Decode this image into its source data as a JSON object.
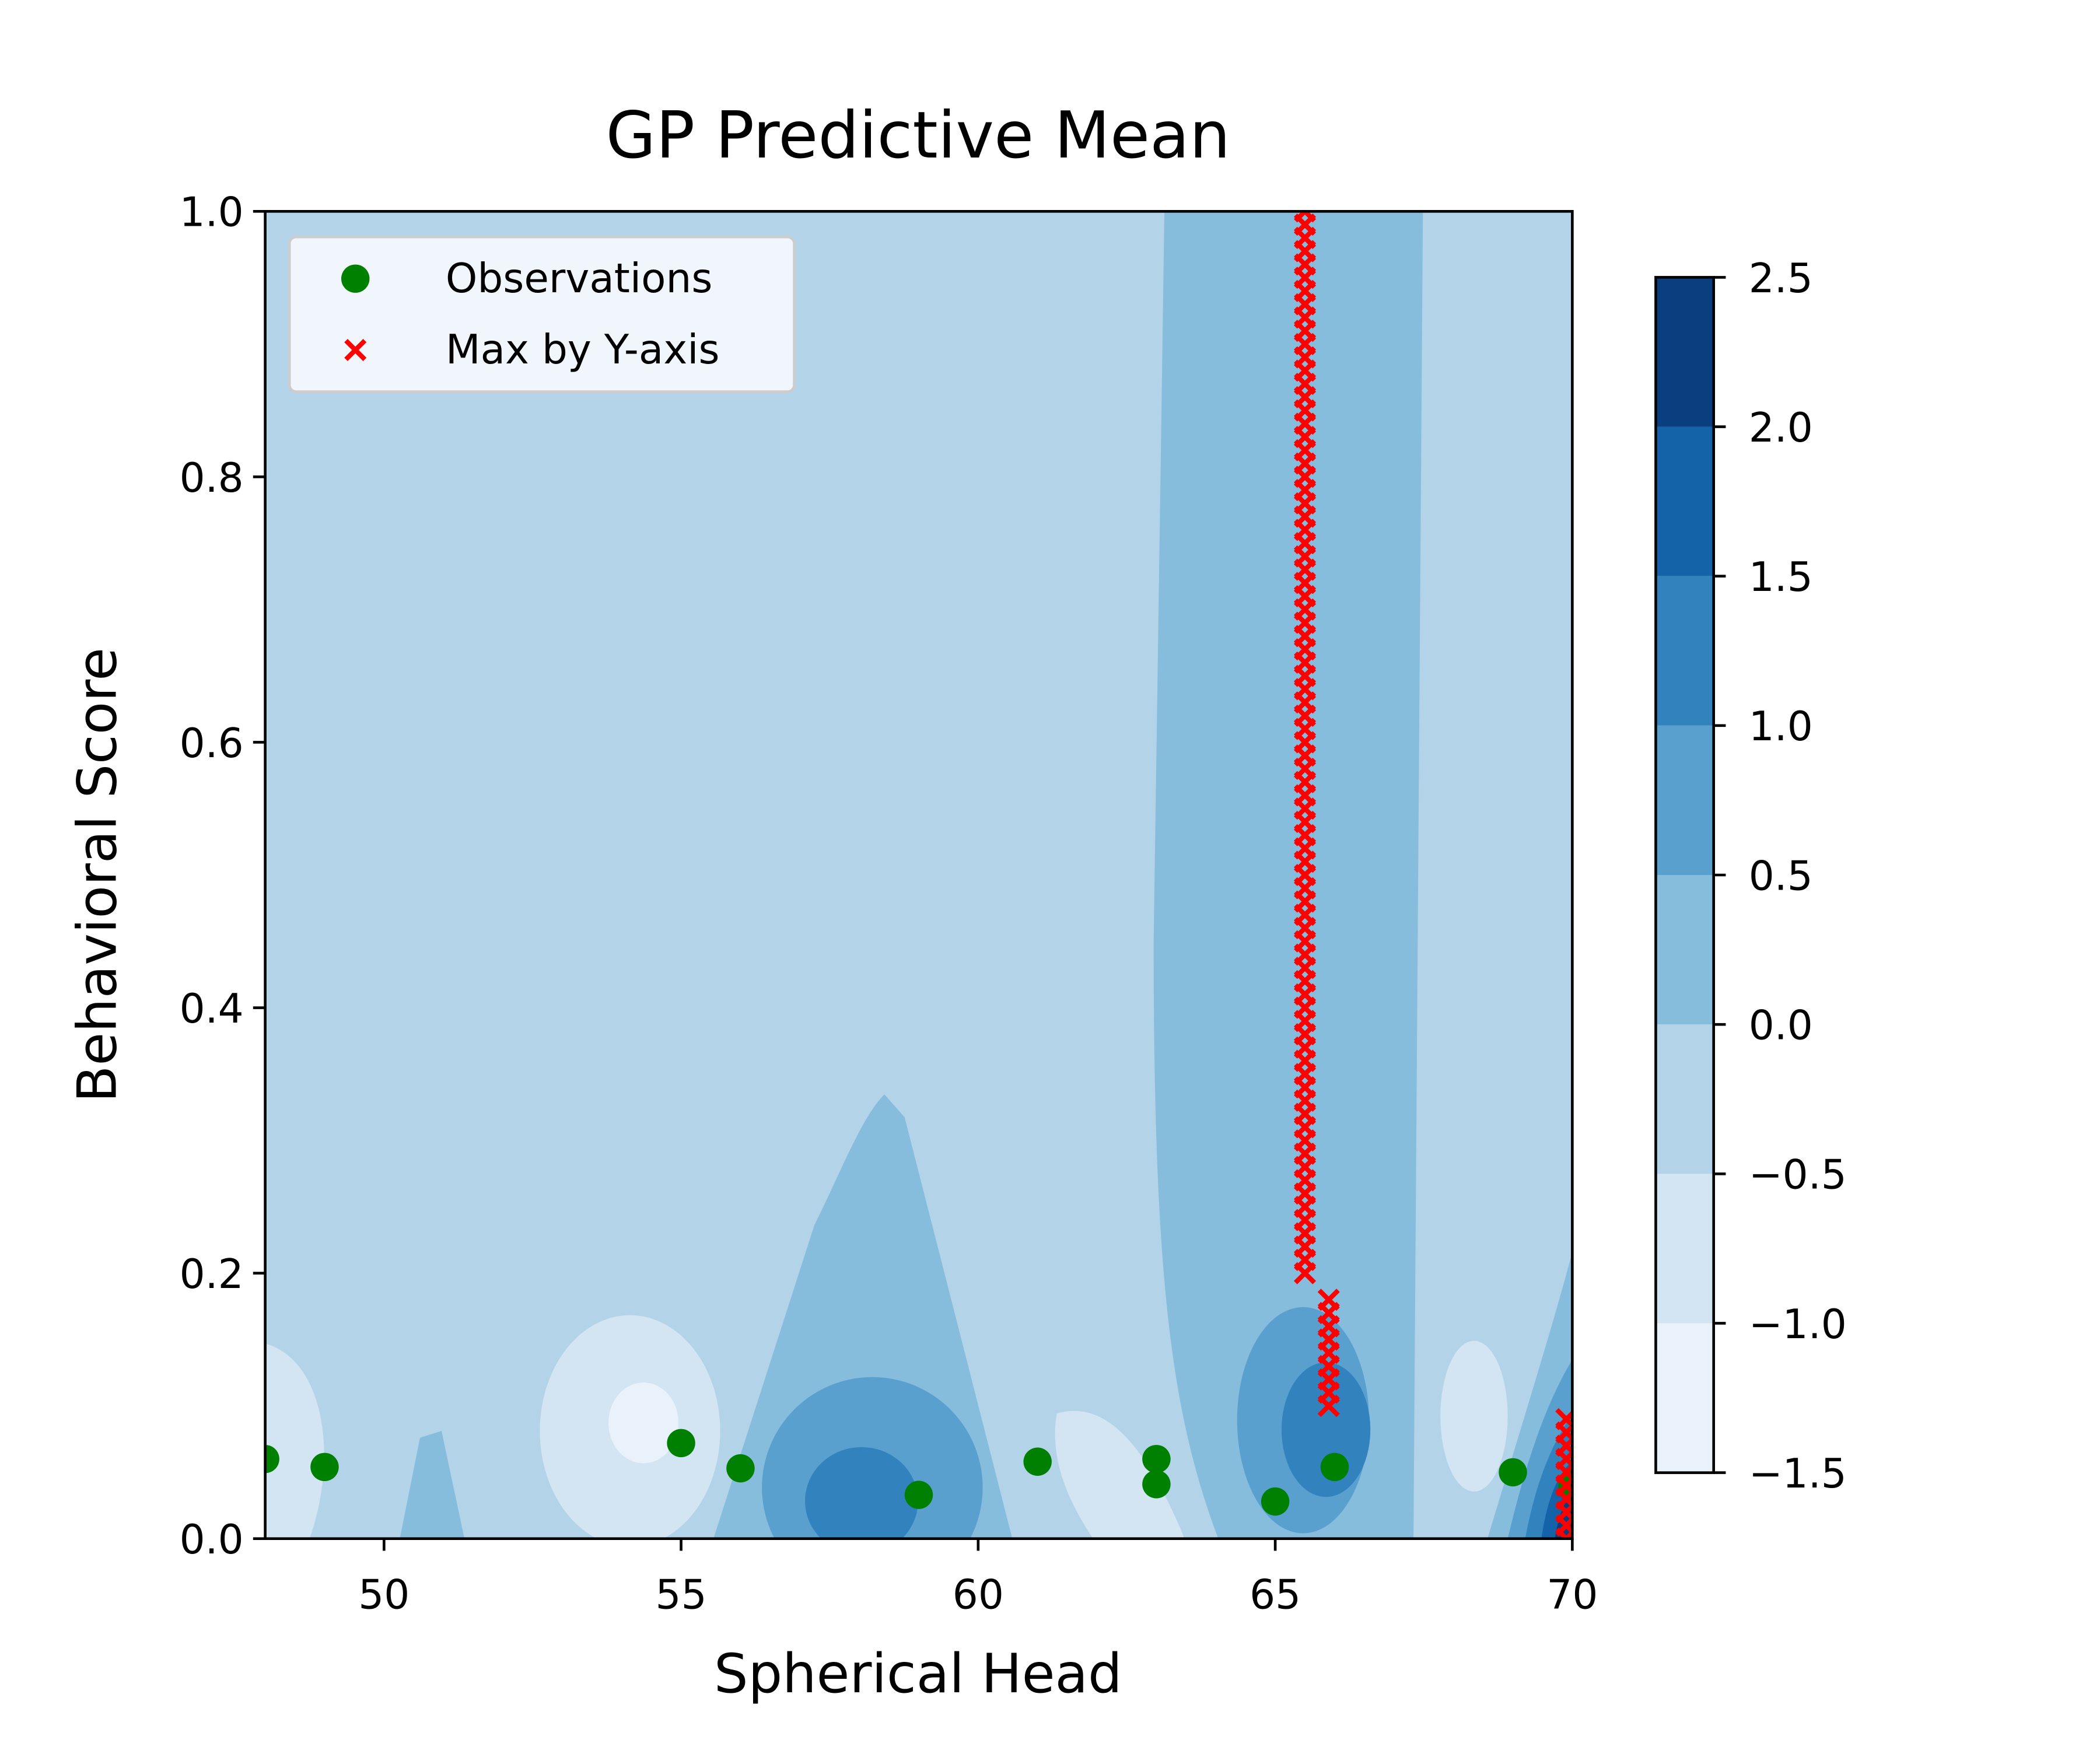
{
  "chart_data": {
    "type": "contour",
    "title": "GP Predictive Mean",
    "xlabel": "Spherical Head",
    "ylabel": "Behavioral Score",
    "xlim": [
      48,
      70
    ],
    "ylim": [
      0,
      1
    ],
    "xticks": [
      50,
      55,
      60,
      65,
      70
    ],
    "yticks": [
      {
        "value": 0,
        "label": "0.0"
      },
      0.2,
      0.4,
      0.6,
      0.8,
      {
        "value": 1,
        "label": "1.0"
      }
    ],
    "legend": "upper left",
    "colorbar": {
      "ticks": [
        {
          "value": -1.5,
          "label": "−1.5"
        },
        {
          "value": -1,
          "label": "−1.0"
        },
        {
          "value": -0.5,
          "label": "−0.5"
        },
        {
          "value": 0,
          "label": "0.0"
        },
        0.5,
        {
          "value": 1,
          "label": "1.0"
        },
        1.5,
        {
          "value": 2,
          "label": "2.0"
        },
        2.5
      ],
      "colors": [
        "#e9f2fb",
        "#d3e4f3",
        "#b3d3e8",
        "#86bcdc",
        "#5aa0cf",
        "#3282be",
        "#1462a8",
        "#0a3f7f"
      ]
    },
    "series": [
      {
        "name": "Observations",
        "marker": "circle",
        "color": "#008000",
        "x": [
          48,
          49,
          55,
          56,
          59,
          61,
          63,
          63,
          65,
          66,
          69,
          70
        ],
        "y": [
          0.06,
          0.054,
          0.072,
          0.053,
          0.033,
          0.058,
          0.06,
          0.041,
          0.028,
          0.054,
          0.05,
          0.04
        ]
      },
      {
        "name": "Max by Y-axis",
        "marker": "x",
        "color": "#ff0000",
        "x": [
          65.5,
          65.5,
          65.5,
          65.5,
          65.5,
          65.5,
          65.5,
          65.5,
          65.5,
          65.5,
          65.5,
          65.5,
          65.5,
          65.5,
          65.5,
          65.5,
          65.5,
          65.5,
          65.5,
          65.5,
          65.5,
          65.5,
          65.5,
          65.5,
          65.5,
          65.5,
          65.5,
          65.5,
          65.5,
          65.5,
          65.5,
          65.5,
          65.5,
          65.5,
          65.5,
          65.5,
          65.5,
          65.5,
          65.5,
          65.5,
          65.5,
          65.5,
          65.5,
          65.5,
          65.5,
          65.5,
          65.5,
          65.5,
          65.5,
          65.5,
          65.5,
          65.5,
          65.5,
          65.5,
          65.5,
          65.5,
          65.5,
          65.5,
          65.5,
          65.5,
          65.5,
          65.5,
          65.5,
          65.5,
          65.5,
          65.5,
          65.5,
          65.5,
          65.5,
          65.5,
          65.5,
          65.5,
          65.5,
          65.5,
          65.5,
          65.5,
          65.5,
          65.5,
          65.5,
          65.5,
          65.5,
          65.9,
          65.9,
          65.9,
          65.9,
          65.9,
          65.9,
          65.9,
          65.9,
          65.9,
          69.9,
          69.9,
          69.9,
          69.9,
          69.9,
          69.9,
          69.9,
          69.9,
          69.9,
          69.9
        ],
        "y": [
          0.2,
          0.21,
          0.22,
          0.23,
          0.24,
          0.25,
          0.26,
          0.27,
          0.28,
          0.29,
          0.3,
          0.31,
          0.32,
          0.33,
          0.34,
          0.35,
          0.36,
          0.37,
          0.38,
          0.39,
          0.4,
          0.41,
          0.42,
          0.43,
          0.44,
          0.45,
          0.46,
          0.47,
          0.48,
          0.49,
          0.5,
          0.51,
          0.52,
          0.53,
          0.54,
          0.55,
          0.56,
          0.57,
          0.58,
          0.59,
          0.6,
          0.61,
          0.62,
          0.63,
          0.64,
          0.65,
          0.66,
          0.67,
          0.68,
          0.69,
          0.7,
          0.71,
          0.72,
          0.73,
          0.74,
          0.75,
          0.76,
          0.77,
          0.78,
          0.79,
          0.8,
          0.81,
          0.82,
          0.83,
          0.84,
          0.85,
          0.86,
          0.87,
          0.88,
          0.89,
          0.9,
          0.91,
          0.92,
          0.93,
          0.94,
          0.95,
          0.96,
          0.97,
          0.98,
          0.99,
          1.0,
          0.1,
          0.11,
          0.12,
          0.13,
          0.14,
          0.15,
          0.16,
          0.17,
          0.18,
          0,
          0.01,
          0.02,
          0.03,
          0.04,
          0.05,
          0.06,
          0.07,
          0.08,
          0.09
        ]
      }
    ]
  }
}
